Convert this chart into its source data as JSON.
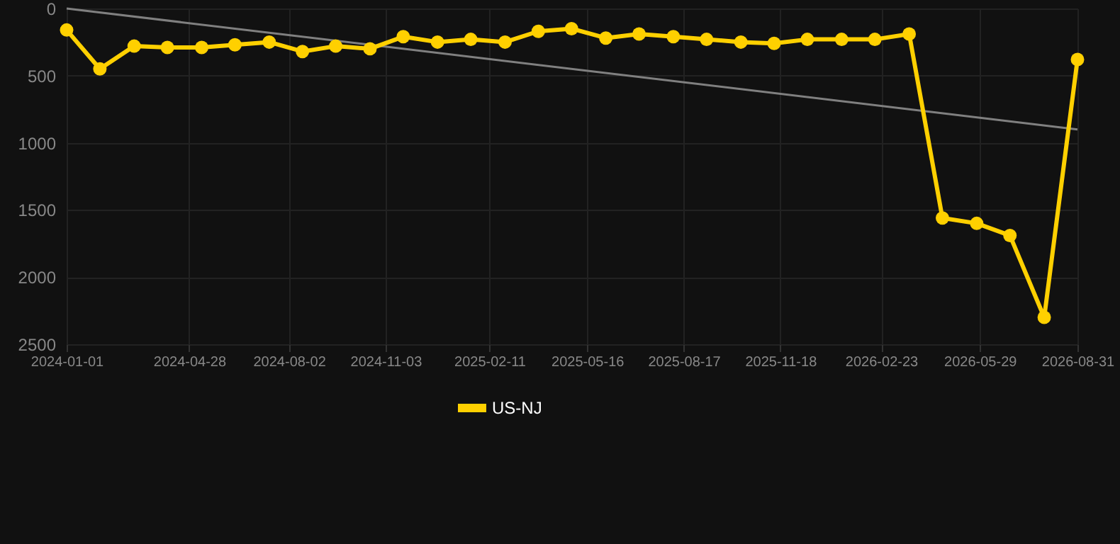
{
  "chart_data": {
    "type": "line",
    "x": [
      "2024-01-01",
      "2024-02-02",
      "2024-03-06",
      "2024-04-07",
      "2024-05-10",
      "2024-06-11",
      "2024-07-14",
      "2024-08-15",
      "2024-09-16",
      "2024-10-19",
      "2024-11-20",
      "2024-12-23",
      "2025-01-24",
      "2025-02-26",
      "2025-03-30",
      "2025-05-01",
      "2025-06-03",
      "2025-07-05",
      "2025-08-07",
      "2025-09-08",
      "2025-10-11",
      "2025-11-12",
      "2025-12-14",
      "2026-01-16",
      "2026-02-17",
      "2026-03-22",
      "2026-04-23",
      "2026-05-26",
      "2026-06-27",
      "2026-07-30",
      "2026-08-31"
    ],
    "series": [
      {
        "name": "US-NJ",
        "color": "#ffd000",
        "marker": "circle",
        "values": [
          160,
          450,
          280,
          290,
          290,
          270,
          250,
          320,
          280,
          300,
          210,
          250,
          230,
          250,
          170,
          150,
          220,
          190,
          210,
          230,
          250,
          260,
          230,
          230,
          230,
          190,
          1560,
          1600,
          1690,
          2300,
          380
        ]
      },
      {
        "type": "line",
        "color": "#808080",
        "marker": "none",
        "x": [
          "2024-01-01",
          "2026-08-31"
        ],
        "values": [
          0,
          900
        ]
      }
    ],
    "ylim": [
      2500,
      0
    ],
    "yticks": [
      0,
      500,
      1000,
      1500,
      2000,
      2500
    ],
    "xlim": [
      "2024-01-01",
      "2026-08-31"
    ],
    "xticks": [
      "2024-01-01",
      "2024-04-28",
      "2024-08-02",
      "2024-11-03",
      "2025-02-11",
      "2025-05-16",
      "2025-08-17",
      "2025-11-18",
      "2026-02-23",
      "2026-05-29",
      "2026-08-31"
    ],
    "grid": true,
    "legend": "bottom"
  }
}
